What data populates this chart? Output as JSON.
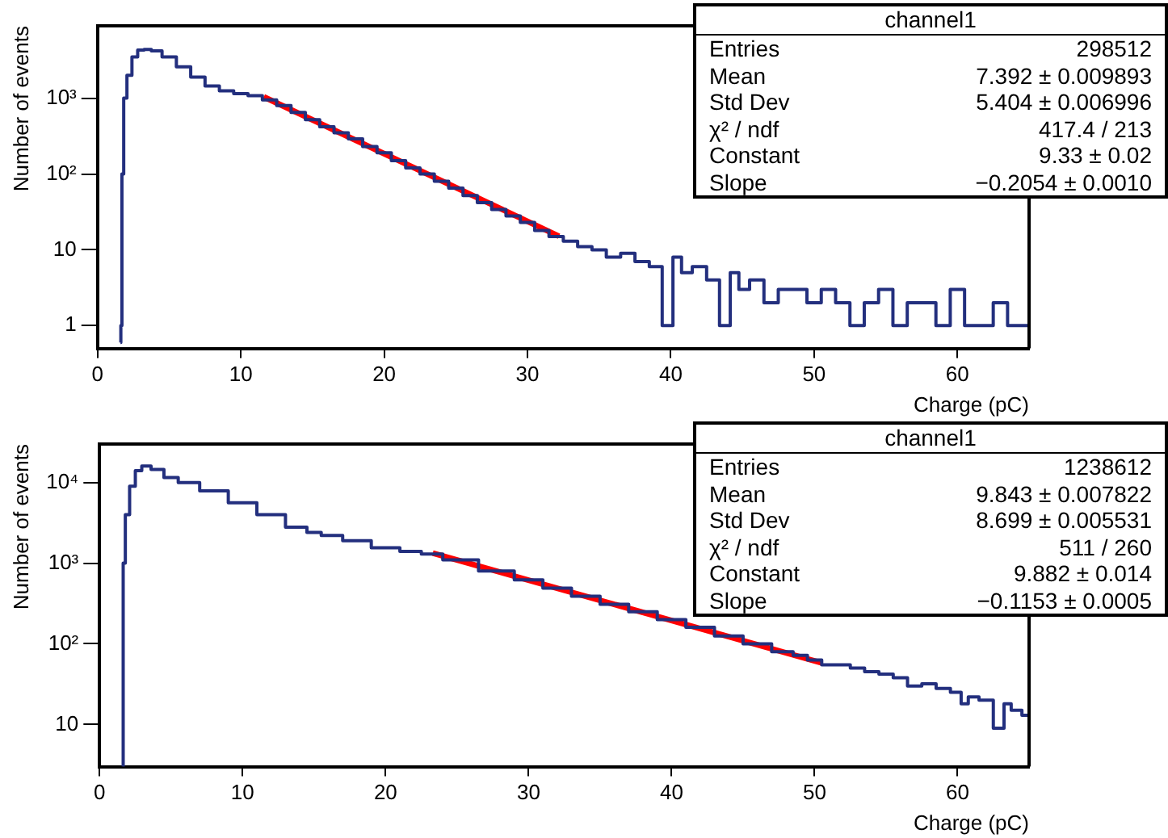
{
  "chart_data": [
    {
      "type": "step",
      "xlabel": "Charge (pC)",
      "ylabel": "Number of events",
      "log": "y",
      "grid": false,
      "marker": "none",
      "xlim": [
        0,
        65
      ],
      "xticks": [
        0,
        10,
        20,
        30,
        40,
        50,
        60
      ],
      "ylim": [
        0.5,
        9000
      ],
      "yticks": [
        {
          "value": 1,
          "label": "1"
        },
        {
          "value": 10,
          "label": "10"
        },
        {
          "value": 100,
          "label": "10²"
        },
        {
          "value": 1000,
          "label": "10³"
        }
      ],
      "annotations": [
        "channel1",
        "Entries",
        "298512",
        "Mean",
        "7.392 ± 0.009893",
        "Std Dev",
        "5.404 ± 0.006996",
        "χ² / ndf",
        "417.4 / 213",
        "Constant",
        "9.33 ± 0.02",
        "Slope",
        "−0.2054 ± 0.0010"
      ],
      "series": [
        {
          "color": "#232f7e",
          "x": [
            1.6,
            1.65,
            1.75,
            1.9,
            2.2,
            2.6,
            3,
            3.5,
            4,
            5,
            6,
            7,
            8,
            9,
            10,
            11,
            12,
            13,
            14,
            15,
            16,
            17,
            18,
            19,
            20,
            21,
            22,
            23,
            24,
            25,
            26,
            27,
            28,
            29,
            30,
            31,
            32,
            33,
            34,
            35,
            36,
            37,
            38,
            39,
            39.8,
            40.5,
            41,
            42,
            43,
            43.8,
            44.5,
            45,
            46,
            47,
            48,
            49,
            50,
            51,
            52,
            53,
            54,
            55,
            56,
            57,
            58,
            59,
            60,
            61,
            62,
            63,
            64,
            65
          ],
          "values": [
            0.6,
            1,
            100,
            1000,
            2000,
            3500,
            4300,
            4400,
            4200,
            3500,
            2600,
            1900,
            1450,
            1250,
            1150,
            1080,
            950,
            800,
            650,
            520,
            420,
            350,
            290,
            230,
            190,
            150,
            120,
            100,
            80,
            65,
            52,
            42,
            34,
            28,
            23,
            18,
            15,
            13,
            11,
            10,
            8,
            9,
            7,
            6,
            1,
            8,
            5,
            6,
            4,
            1,
            5,
            3,
            4,
            2,
            3,
            3,
            2,
            3,
            2,
            1,
            2,
            3,
            1,
            2,
            2,
            1,
            3,
            1,
            1,
            2,
            1,
            1
          ]
        },
        {
          "type": "line",
          "color": "#ff0000",
          "x": [
            11.6,
            32.2
          ],
          "values": [
            1040,
            15.1
          ]
        }
      ]
    },
    {
      "type": "step",
      "xlabel": "Charge (pC)",
      "ylabel": "Number of events",
      "log": "y",
      "grid": false,
      "marker": "none",
      "xlim": [
        0,
        65
      ],
      "xticks": [
        0,
        10,
        20,
        30,
        40,
        50,
        60
      ],
      "ylim": [
        3,
        30000
      ],
      "yticks": [
        {
          "value": 10,
          "label": "10"
        },
        {
          "value": 100,
          "label": "10²"
        },
        {
          "value": 1000,
          "label": "10³"
        },
        {
          "value": 10000,
          "label": "10⁴"
        }
      ],
      "annotations": [
        "channel1",
        "Entries",
        "1238612",
        "Mean",
        "9.843 ± 0.007822",
        "Std Dev",
        "8.699 ± 0.005531",
        "χ² / ndf",
        "511 / 260",
        "Constant",
        "9.882 ± 0.014",
        "Slope",
        "−0.1153 ± 0.0005"
      ],
      "series": [
        {
          "color": "#232f7e",
          "x": [
            1.6,
            1.7,
            1.9,
            2.3,
            2.7,
            3.2,
            4,
            5,
            6,
            8,
            10,
            12,
            14,
            15,
            16,
            18,
            20,
            22,
            23,
            25,
            28,
            30,
            32,
            34,
            36,
            38,
            40,
            42,
            44,
            46,
            48,
            49,
            50,
            51,
            52,
            53,
            54,
            55,
            56,
            57,
            58,
            59,
            60,
            60.5,
            61,
            62,
            63,
            63.5,
            64,
            65
          ],
          "values": [
            3,
            1000,
            4000,
            9000,
            14000,
            16000,
            14500,
            11500,
            10000,
            7900,
            5600,
            4000,
            2800,
            2400,
            2200,
            1900,
            1550,
            1400,
            1300,
            1100,
            800,
            620,
            490,
            390,
            310,
            250,
            200,
            160,
            125,
            100,
            80,
            72,
            63,
            55,
            55,
            50,
            45,
            42,
            38,
            30,
            32,
            28,
            25,
            18,
            22,
            20,
            9,
            18,
            15,
            13
          ]
        },
        {
          "type": "line",
          "color": "#ff0000",
          "x": [
            23.3,
            50.5
          ],
          "values": [
            1333,
            58
          ]
        }
      ]
    }
  ]
}
